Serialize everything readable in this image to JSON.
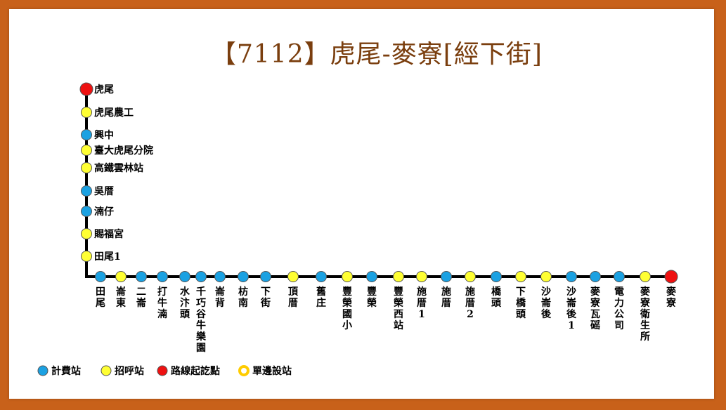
{
  "title": "【7112】虎尾-麥寮[經下街]",
  "colors": {
    "route_line": "#000000",
    "fare_stop": "#1ba1e2",
    "flag_stop": "#ffff33",
    "terminal": "#ee1111",
    "one_side_ring": "#ffcc00",
    "frame": "#c8611a",
    "title": "#7a3e0e"
  },
  "vertical_stops": [
    {
      "name": "虎尾",
      "type": "terminal"
    },
    {
      "name": "虎尾農工",
      "type": "flag"
    },
    {
      "name": "興中",
      "type": "fare"
    },
    {
      "name": "臺大虎尾分院",
      "type": "flag"
    },
    {
      "name": "高鐵雲林站",
      "type": "flag"
    },
    {
      "name": "吳厝",
      "type": "fare"
    },
    {
      "name": "湳仔",
      "type": "fare"
    },
    {
      "name": "賜福宮",
      "type": "flag"
    },
    {
      "name": "田尾1",
      "type": "flag"
    }
  ],
  "horizontal_stops": [
    {
      "name": "田尾",
      "type": "fare"
    },
    {
      "name": "崙東",
      "type": "flag"
    },
    {
      "name": "二崙",
      "type": "fare"
    },
    {
      "name": "打牛湳",
      "type": "fare"
    },
    {
      "name": "水汴頭",
      "type": "fare"
    },
    {
      "name": "千巧谷牛樂園",
      "type": "fare"
    },
    {
      "name": "崙背",
      "type": "fare"
    },
    {
      "name": "枋南",
      "type": "fare"
    },
    {
      "name": "下街",
      "type": "fare"
    },
    {
      "name": "頂厝",
      "type": "flag"
    },
    {
      "name": "舊庄",
      "type": "fare"
    },
    {
      "name": "豐榮國小",
      "type": "flag"
    },
    {
      "name": "豐榮",
      "type": "fare"
    },
    {
      "name": "豐榮西站",
      "type": "flag"
    },
    {
      "name": "施厝1",
      "type": "flag"
    },
    {
      "name": "施厝",
      "type": "fare"
    },
    {
      "name": "施厝2",
      "type": "flag"
    },
    {
      "name": "橋頭",
      "type": "fare"
    },
    {
      "name": "下橋頭",
      "type": "flag"
    },
    {
      "name": "沙崙後",
      "type": "flag"
    },
    {
      "name": "沙崙後1",
      "type": "fare"
    },
    {
      "name": "麥寮瓦磘",
      "type": "fare"
    },
    {
      "name": "電力公司",
      "type": "fare"
    },
    {
      "name": "麥寮衛生所",
      "type": "flag"
    },
    {
      "name": "麥寮",
      "type": "terminal"
    }
  ],
  "legend": [
    {
      "label": "計費站",
      "type": "fare"
    },
    {
      "label": "招呼站",
      "type": "flag"
    },
    {
      "label": "路線起訖點",
      "type": "terminal"
    },
    {
      "label": "單邊設站",
      "type": "ring"
    }
  ]
}
